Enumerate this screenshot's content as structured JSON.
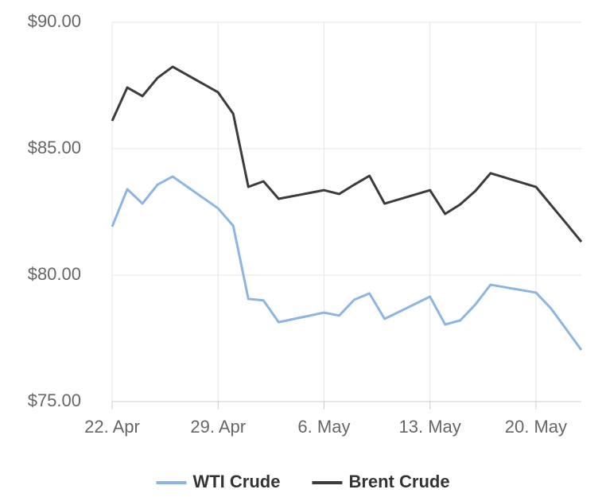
{
  "chart_data": {
    "type": "line",
    "x": [
      "04-22",
      "04-23",
      "04-24",
      "04-25",
      "04-26",
      "04-29",
      "04-30",
      "05-01",
      "05-02",
      "05-03",
      "05-06",
      "05-07",
      "05-08",
      "05-09",
      "05-10",
      "05-13",
      "05-14",
      "05-15",
      "05-16",
      "05-17",
      "05-20",
      "05-21",
      "05-22",
      "05-23"
    ],
    "series": [
      {
        "name": "WTI Crude",
        "color": "#8db5e3",
        "values": [
          81.92,
          83.4,
          82.83,
          83.58,
          83.9,
          82.64,
          81.95,
          79.06,
          79.0,
          78.14,
          78.52,
          78.4,
          79.03,
          79.28,
          78.27,
          79.15,
          78.05,
          78.21,
          78.84,
          79.62,
          79.31,
          78.68,
          77.86,
          77.04
        ]
      },
      {
        "name": "Brent Crude",
        "color": "#3b3b40",
        "values": [
          86.1,
          87.42,
          87.08,
          87.8,
          88.24,
          87.23,
          86.38,
          83.49,
          83.71,
          83.02,
          83.36,
          83.21,
          83.58,
          83.93,
          82.83,
          83.36,
          82.42,
          82.8,
          83.33,
          84.03,
          83.49,
          82.77,
          82.05,
          81.32
        ]
      }
    ],
    "xlim": [
      "04-22",
      "05-23"
    ],
    "xticks": [
      {
        "value": "04-22",
        "label": "22. Apr"
      },
      {
        "value": "04-29",
        "label": "29. Apr"
      },
      {
        "value": "05-06",
        "label": "6. May"
      },
      {
        "value": "05-13",
        "label": "13. May"
      },
      {
        "value": "05-20",
        "label": "20. May"
      }
    ],
    "ylim": [
      75,
      90
    ],
    "yticks": [
      {
        "value": 75,
        "label": "$75.00"
      },
      {
        "value": 80,
        "label": "$80.00"
      },
      {
        "value": 85,
        "label": "$85.00"
      },
      {
        "value": 90,
        "label": "$90.00"
      }
    ],
    "grid": true,
    "legend": "bottom"
  }
}
